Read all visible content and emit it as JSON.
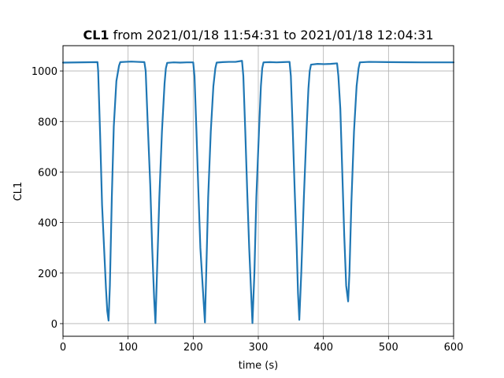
{
  "chart_data": {
    "type": "line",
    "title_bold": "CL1",
    "title_rest": " from 2021/01/18 11:54:31 to 2021/01/18 12:04:31",
    "xlabel": "time (s)",
    "ylabel": "CL1",
    "xlim": [
      0,
      600
    ],
    "ylim": [
      -50,
      1100
    ],
    "xticks": [
      0,
      100,
      200,
      300,
      400,
      500,
      600
    ],
    "yticks": [
      0,
      200,
      400,
      600,
      800,
      1000
    ],
    "grid": true,
    "line_color": "#1f77b4",
    "series": [
      {
        "x": [
          0,
          53,
          54,
          57,
          60,
          64,
          66,
          68,
          70,
          72,
          75,
          78,
          82,
          86,
          88,
          95,
          105,
          115,
          125,
          127,
          130,
          134,
          137,
          140,
          142,
          145,
          148,
          152,
          156,
          158,
          160,
          170,
          180,
          190,
          200,
          202,
          205,
          208,
          211,
          215,
          218,
          220,
          223,
          227,
          231,
          234,
          236,
          245,
          255,
          265,
          275,
          277,
          280,
          283,
          286,
          289,
          291,
          294,
          297,
          301,
          304,
          306,
          308,
          318,
          328,
          338,
          348,
          350,
          353,
          356,
          359,
          361,
          363,
          366,
          370,
          374,
          377,
          379,
          381,
          391,
          401,
          411,
          421,
          423,
          426,
          429,
          432,
          435,
          438,
          440,
          443,
          447,
          451,
          454,
          456,
          470,
          500,
          550,
          600
        ],
        "y": [
          1033,
          1035,
          1000,
          750,
          470,
          250,
          140,
          50,
          12,
          150,
          500,
          780,
          960,
          1020,
          1035,
          1036,
          1037,
          1036,
          1035,
          1000,
          800,
          550,
          300,
          100,
          2,
          250,
          500,
          760,
          950,
          1010,
          1032,
          1034,
          1033,
          1034,
          1034,
          980,
          760,
          520,
          300,
          130,
          5,
          200,
          500,
          760,
          940,
          1010,
          1033,
          1035,
          1036,
          1036,
          1040,
          980,
          760,
          520,
          300,
          120,
          2,
          200,
          500,
          760,
          940,
          1010,
          1034,
          1035,
          1034,
          1035,
          1036,
          980,
          760,
          520,
          300,
          120,
          15,
          200,
          500,
          760,
          930,
          1000,
          1025,
          1028,
          1027,
          1028,
          1030,
          980,
          850,
          600,
          350,
          150,
          88,
          200,
          480,
          760,
          940,
          1010,
          1034,
          1036,
          1035,
          1034,
          1034
        ]
      }
    ]
  }
}
